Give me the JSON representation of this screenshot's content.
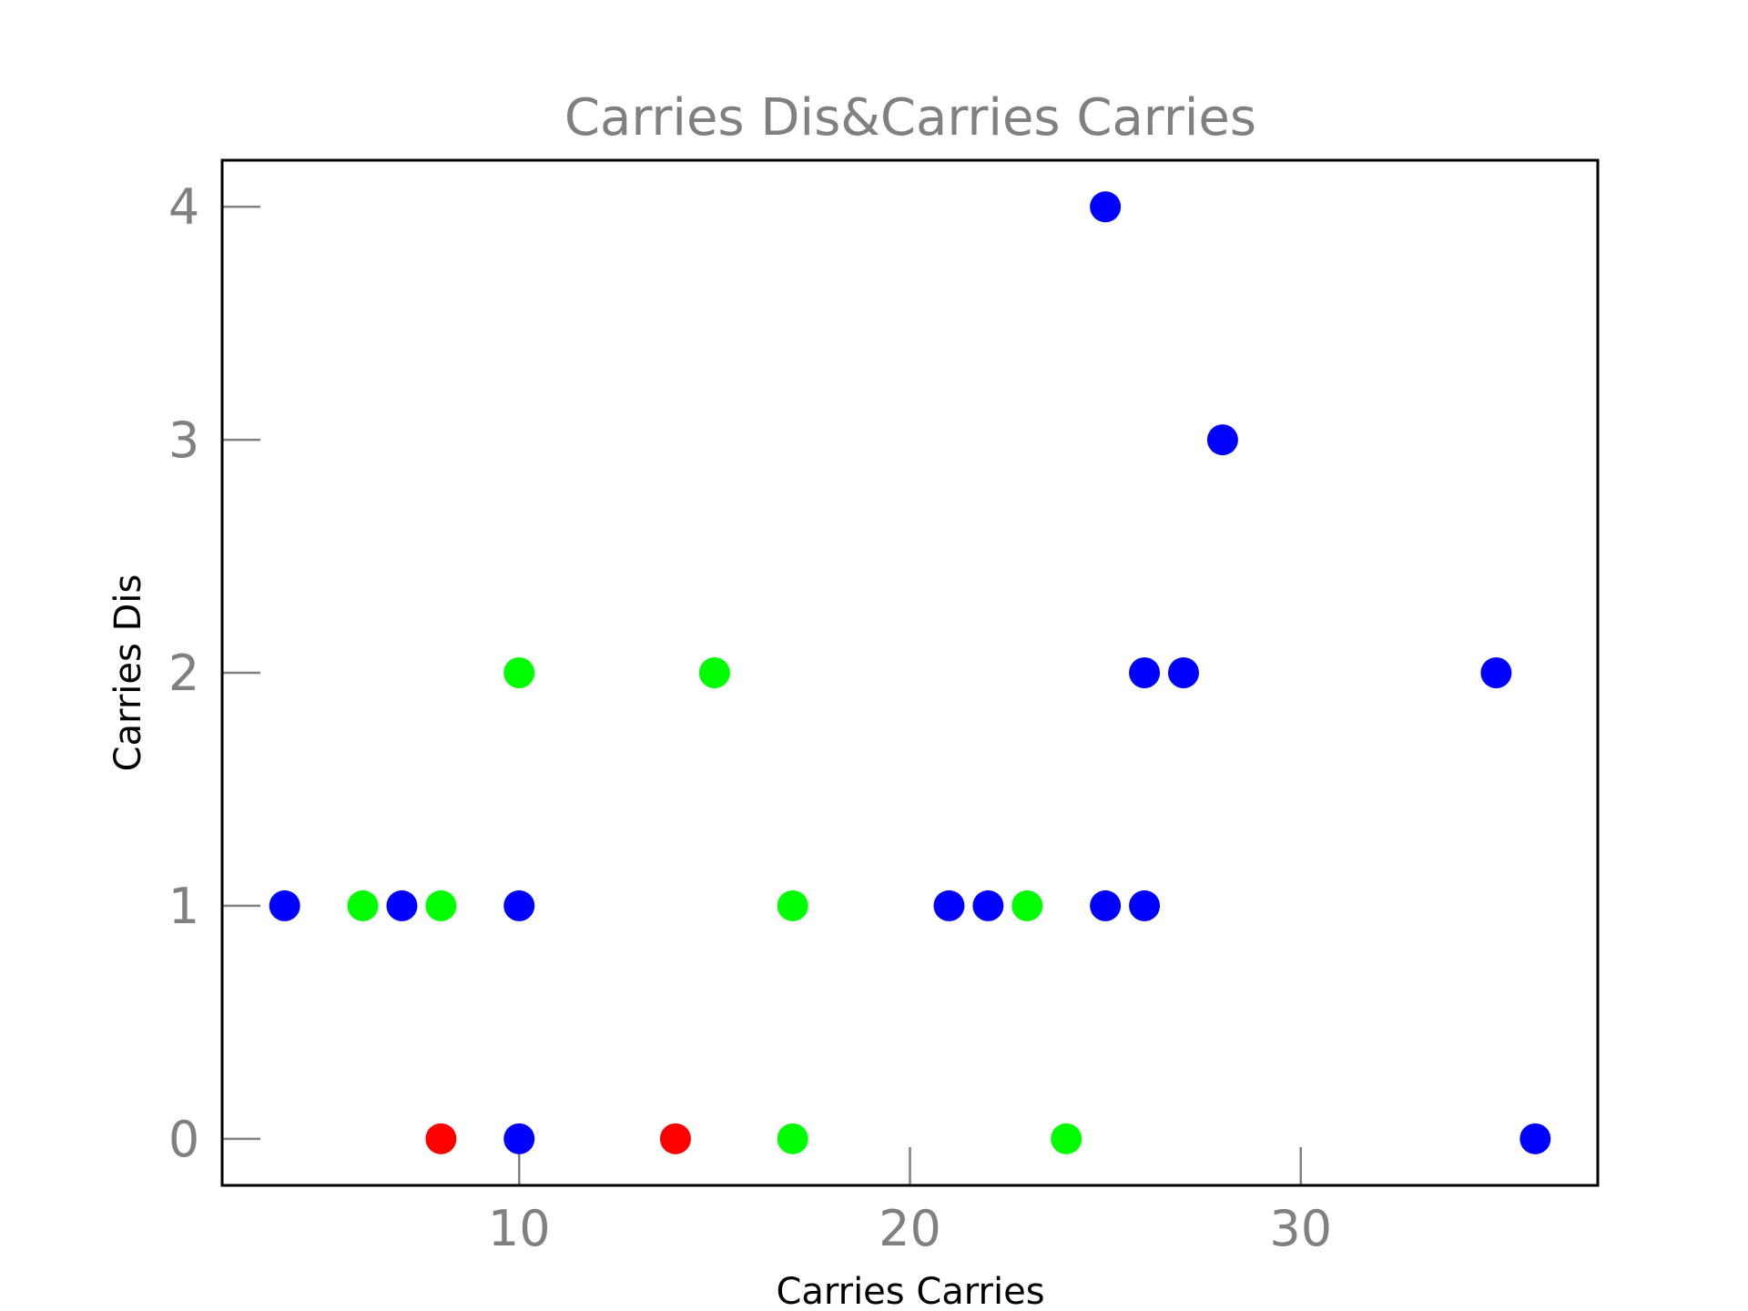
{
  "chart_data": {
    "type": "scatter",
    "title": "Carries Dis&Carries Carries",
    "xlabel": "Carries Carries",
    "ylabel": "Carries Dis",
    "xlim": [
      2.4,
      37.6
    ],
    "ylim": [
      -0.2,
      4.2
    ],
    "xticks": [
      10,
      20,
      30
    ],
    "yticks": [
      0,
      1,
      2,
      3,
      4
    ],
    "grid": false,
    "legend": "none",
    "colors": {
      "blue": "#0000ff",
      "green": "#00ff00",
      "red": "#ff0000"
    },
    "points": [
      {
        "x": 4,
        "y": 1,
        "color": "blue"
      },
      {
        "x": 6,
        "y": 1,
        "color": "green"
      },
      {
        "x": 7,
        "y": 1,
        "color": "blue"
      },
      {
        "x": 8,
        "y": 1,
        "color": "green"
      },
      {
        "x": 8,
        "y": 0,
        "color": "red"
      },
      {
        "x": 10,
        "y": 2,
        "color": "green"
      },
      {
        "x": 10,
        "y": 1,
        "color": "blue"
      },
      {
        "x": 10,
        "y": 0,
        "color": "blue"
      },
      {
        "x": 14,
        "y": 0,
        "color": "red"
      },
      {
        "x": 15,
        "y": 2,
        "color": "green"
      },
      {
        "x": 17,
        "y": 1,
        "color": "green"
      },
      {
        "x": 17,
        "y": 0,
        "color": "green"
      },
      {
        "x": 21,
        "y": 1,
        "color": "blue"
      },
      {
        "x": 22,
        "y": 1,
        "color": "blue"
      },
      {
        "x": 23,
        "y": 1,
        "color": "green"
      },
      {
        "x": 24,
        "y": 0,
        "color": "green"
      },
      {
        "x": 25,
        "y": 4,
        "color": "blue"
      },
      {
        "x": 25,
        "y": 1,
        "color": "blue"
      },
      {
        "x": 26,
        "y": 2,
        "color": "blue"
      },
      {
        "x": 26,
        "y": 1,
        "color": "blue"
      },
      {
        "x": 27,
        "y": 2,
        "color": "blue"
      },
      {
        "x": 28,
        "y": 3,
        "color": "blue"
      },
      {
        "x": 35,
        "y": 2,
        "color": "blue"
      },
      {
        "x": 36,
        "y": 0,
        "color": "blue"
      }
    ]
  }
}
